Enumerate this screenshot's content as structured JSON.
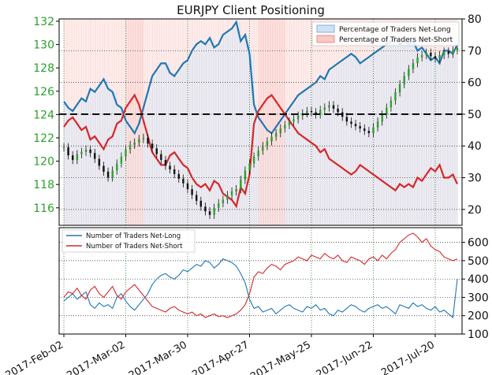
{
  "chart_data": [
    {
      "type": "line",
      "title": "EURJPY Client Positioning",
      "xlabel": "",
      "ylabel": "",
      "left_axis": {
        "label": "",
        "ticks": [
          116,
          118,
          120,
          122,
          124,
          126,
          128,
          130,
          132
        ],
        "range": [
          114.5,
          132.2
        ],
        "color": "#2ca02c"
      },
      "right_axis": {
        "label": "",
        "ticks": [
          20,
          30,
          40,
          50,
          60,
          70,
          80
        ],
        "range": [
          15,
          80
        ],
        "reference_line": 50
      },
      "grid": true,
      "legend_position": "top-right",
      "legend": [
        {
          "label": "Percentage of Traders Net-Long",
          "color": "#4a90d9"
        },
        {
          "label": "Percentage of Traders Net-Short",
          "color": "#e03c31"
        }
      ],
      "series": [
        {
          "name": "Percentage of Traders Net-Long",
          "axis": "right",
          "color": "#1f77b4",
          "values": [
            54,
            52,
            51,
            53,
            55,
            54,
            58,
            57,
            59,
            61,
            58,
            57,
            53,
            52,
            48,
            46,
            44,
            47,
            52,
            57,
            62,
            64,
            66,
            66,
            63,
            62,
            64,
            66,
            67,
            70,
            72,
            73,
            72,
            74,
            71,
            72,
            75,
            76,
            77,
            79,
            73,
            75,
            69,
            53,
            49,
            47,
            45,
            44,
            46,
            48,
            50,
            52,
            54,
            56,
            57,
            58,
            59,
            60,
            62,
            61,
            64,
            65,
            66,
            67,
            68,
            69,
            68,
            66,
            67,
            68,
            69,
            70,
            71,
            72,
            73,
            74,
            72,
            73,
            72,
            73,
            70,
            71,
            69,
            67,
            68,
            66,
            70,
            70,
            69,
            72
          ]
        },
        {
          "name": "Percentage of Traders Net-Short",
          "axis": "right",
          "color": "#d62728",
          "values": [
            46,
            48,
            49,
            47,
            45,
            46,
            42,
            43,
            41,
            39,
            42,
            43,
            47,
            48,
            52,
            54,
            56,
            53,
            48,
            43,
            38,
            36,
            34,
            34,
            37,
            38,
            36,
            34,
            33,
            30,
            28,
            27,
            28,
            26,
            29,
            28,
            25,
            24,
            23,
            21,
            27,
            25,
            31,
            47,
            51,
            53,
            55,
            56,
            54,
            52,
            50,
            48,
            46,
            44,
            43,
            42,
            41,
            40,
            38,
            39,
            36,
            35,
            34,
            33,
            32,
            31,
            32,
            34,
            33,
            32,
            31,
            30,
            29,
            28,
            27,
            26,
            28,
            27,
            28,
            27,
            30,
            29,
            31,
            33,
            32,
            34,
            30,
            30,
            31,
            28
          ]
        },
        {
          "name": "EURJPY",
          "axis": "left",
          "type": "candlestick",
          "color": "#2ca02c",
          "values": [
            121.2,
            120.5,
            120.1,
            120.6,
            120.8,
            121.0,
            120.7,
            120.2,
            119.6,
            119.1,
            118.6,
            119.2,
            119.8,
            120.4,
            121.0,
            121.4,
            121.6,
            121.9,
            122.0,
            121.5,
            121.1,
            120.6,
            120.1,
            119.6,
            119.3,
            118.9,
            118.5,
            118.1,
            117.6,
            117.1,
            116.6,
            116.1,
            115.7,
            115.4,
            116.0,
            116.4,
            116.7,
            117.1,
            117.4,
            117.6,
            118.4,
            119.2,
            119.8,
            120.4,
            120.9,
            121.3,
            121.7,
            122.1,
            122.4,
            122.8,
            123.1,
            123.4,
            123.6,
            123.9,
            124.1,
            124.3,
            124.2,
            124.0,
            124.4,
            124.6,
            124.8,
            124.5,
            124.2,
            123.8,
            123.4,
            123.2,
            123.0,
            122.8,
            122.6,
            122.4,
            122.9,
            123.4,
            124.0,
            124.6,
            125.2,
            125.9,
            126.6,
            127.3,
            127.9,
            128.4,
            128.9,
            129.1,
            129.3,
            129.0,
            128.8,
            129.1,
            129.4,
            129.2,
            129.5,
            129.7
          ]
        }
      ],
      "x_ticks": [
        "2017-Feb-02",
        "2017-Mar-02",
        "2017-Mar-30",
        "2017-Apr-27",
        "2017-May-25",
        "2017-Jun-22",
        "2017-Jul-20"
      ]
    },
    {
      "type": "line",
      "xlabel": "",
      "ylabel": "",
      "right_axis": {
        "label": "",
        "ticks": [
          100,
          200,
          300,
          400,
          500,
          600
        ],
        "range": [
          100,
          680
        ]
      },
      "grid": true,
      "legend_position": "top-left",
      "series": [
        {
          "name": "Number of Traders Net-Long",
          "color": "#1f77b4",
          "values": [
            280,
            300,
            320,
            290,
            310,
            330,
            260,
            240,
            270,
            250,
            260,
            240,
            300,
            320,
            280,
            250,
            230,
            260,
            290,
            320,
            370,
            400,
            420,
            430,
            410,
            400,
            420,
            450,
            440,
            460,
            480,
            470,
            500,
            490,
            460,
            480,
            510,
            500,
            490,
            470,
            430,
            380,
            290,
            240,
            250,
            220,
            230,
            240,
            210,
            230,
            250,
            260,
            240,
            230,
            220,
            250,
            240,
            260,
            230,
            240,
            210,
            200,
            230,
            220,
            240,
            260,
            250,
            230,
            220,
            240,
            250,
            260,
            240,
            250,
            230,
            210,
            260,
            250,
            240,
            270,
            250,
            260,
            240,
            230,
            250,
            220,
            230,
            210,
            190,
            400
          ]
        },
        {
          "name": "Number of Traders Net-Short",
          "color": "#d62728",
          "values": [
            300,
            330,
            320,
            350,
            310,
            290,
            340,
            360,
            320,
            300,
            330,
            360,
            310,
            290,
            330,
            350,
            370,
            340,
            310,
            280,
            250,
            240,
            230,
            220,
            240,
            250,
            230,
            220,
            210,
            220,
            200,
            210,
            190,
            200,
            210,
            195,
            200,
            190,
            200,
            210,
            230,
            260,
            320,
            410,
            440,
            430,
            460,
            480,
            470,
            450,
            480,
            490,
            500,
            520,
            510,
            500,
            530,
            520,
            510,
            540,
            520,
            510,
            530,
            500,
            490,
            520,
            510,
            500,
            480,
            510,
            520,
            500,
            530,
            510,
            540,
            560,
            600,
            620,
            640,
            650,
            630,
            600,
            620,
            580,
            560,
            550,
            520,
            510,
            500,
            510
          ]
        }
      ],
      "x_ticks": [
        "2017-Feb-02",
        "2017-Mar-02",
        "2017-Mar-30",
        "2017-Apr-27",
        "2017-May-25",
        "2017-Jun-22",
        "2017-Jul-20"
      ]
    }
  ]
}
